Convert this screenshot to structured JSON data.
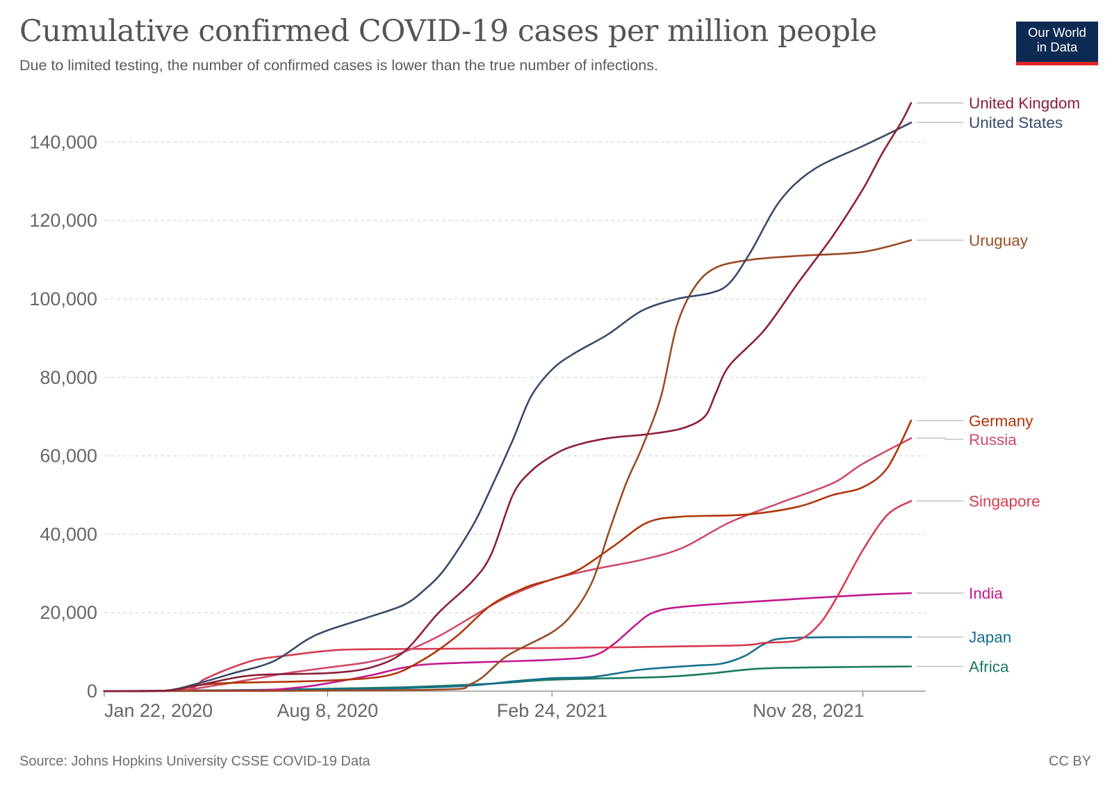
{
  "header": {
    "title": "Cumulative confirmed COVID-19 cases per million people",
    "subtitle": "Due to limited testing, the number of confirmed cases is lower than the true number of infections."
  },
  "logo": {
    "line1": "Our World",
    "line2": "in Data",
    "bg_color": "#0d2a52",
    "accent_color": "#e3262a"
  },
  "footer": {
    "source": "Source: Johns Hopkins University CSSE COVID-19 Data",
    "license": "CC BY"
  },
  "chart_data": {
    "type": "line",
    "title": "Cumulative confirmed COVID-19 cases per million people",
    "xlabel": "",
    "ylabel": "",
    "x_range": [
      "2020-01-22",
      "2022-01-23"
    ],
    "ylim": [
      0,
      150000
    ],
    "y_ticks": [
      0,
      20000,
      40000,
      60000,
      80000,
      100000,
      120000,
      140000
    ],
    "y_tick_labels": [
      "0",
      "20,000",
      "40,000",
      "60,000",
      "80,000",
      "100,000",
      "120,000",
      "140,000"
    ],
    "x_ticks": [
      "2020-01-22",
      "2020-08-08",
      "2021-02-24",
      "2021-11-28"
    ],
    "x_tick_labels": [
      "Jan 22, 2020",
      "Aug 8, 2020",
      "Feb 24, 2021",
      "Nov 28, 2021"
    ],
    "grid": "horizontal dashed",
    "legend": "right, labels at line ends",
    "series": [
      {
        "name": "United Kingdom",
        "color": "#8b1f38",
        "points": [
          [
            "2020-01-22",
            0
          ],
          [
            "2020-03-15",
            50
          ],
          [
            "2020-04-15",
            1500
          ],
          [
            "2020-06-01",
            4000
          ],
          [
            "2020-08-08",
            4600
          ],
          [
            "2020-09-15",
            6000
          ],
          [
            "2020-10-15",
            10000
          ],
          [
            "2020-11-15",
            20000
          ],
          [
            "2020-12-15",
            28000
          ],
          [
            "2021-01-01",
            35000
          ],
          [
            "2021-01-20",
            50000
          ],
          [
            "2021-02-05",
            56000
          ],
          [
            "2021-02-24",
            60000
          ],
          [
            "2021-03-15",
            62500
          ],
          [
            "2021-04-15",
            64500
          ],
          [
            "2021-05-20",
            65500
          ],
          [
            "2021-06-20",
            67000
          ],
          [
            "2021-07-10",
            70000
          ],
          [
            "2021-07-20",
            76000
          ],
          [
            "2021-08-01",
            83000
          ],
          [
            "2021-09-01",
            92000
          ],
          [
            "2021-10-01",
            104000
          ],
          [
            "2021-11-01",
            116000
          ],
          [
            "2021-11-28",
            128000
          ],
          [
            "2021-12-15",
            137000
          ],
          [
            "2022-01-01",
            145000
          ],
          [
            "2022-01-10",
            150000
          ]
        ]
      },
      {
        "name": "United States",
        "color": "#374a69",
        "points": [
          [
            "2020-01-22",
            0
          ],
          [
            "2020-03-15",
            100
          ],
          [
            "2020-04-15",
            2000
          ],
          [
            "2020-05-15",
            4500
          ],
          [
            "2020-06-20",
            7500
          ],
          [
            "2020-07-20",
            13000
          ],
          [
            "2020-08-08",
            15500
          ],
          [
            "2020-09-15",
            19000
          ],
          [
            "2020-10-15",
            22000
          ],
          [
            "2020-11-01",
            25500
          ],
          [
            "2020-11-20",
            31000
          ],
          [
            "2020-12-15",
            42000
          ],
          [
            "2021-01-01",
            52000
          ],
          [
            "2021-01-20",
            64000
          ],
          [
            "2021-02-05",
            75000
          ],
          [
            "2021-02-24",
            82000
          ],
          [
            "2021-03-15",
            86000
          ],
          [
            "2021-04-15",
            91000
          ],
          [
            "2021-05-15",
            97000
          ],
          [
            "2021-06-15",
            100000
          ],
          [
            "2021-07-15",
            101500
          ],
          [
            "2021-08-01",
            104000
          ],
          [
            "2021-08-20",
            112000
          ],
          [
            "2021-09-15",
            125000
          ],
          [
            "2021-10-15",
            133000
          ],
          [
            "2021-11-28",
            139000
          ],
          [
            "2021-12-20",
            142000
          ],
          [
            "2022-01-10",
            145000
          ]
        ]
      },
      {
        "name": "Uruguay",
        "color": "#9a4c24",
        "points": [
          [
            "2020-01-22",
            0
          ],
          [
            "2020-11-01",
            300
          ],
          [
            "2020-12-15",
            2000
          ],
          [
            "2021-01-15",
            9000
          ],
          [
            "2021-02-24",
            15000
          ],
          [
            "2021-03-15",
            20000
          ],
          [
            "2021-04-01",
            28000
          ],
          [
            "2021-04-15",
            40000
          ],
          [
            "2021-05-01",
            53000
          ],
          [
            "2021-05-15",
            62000
          ],
          [
            "2021-06-01",
            75000
          ],
          [
            "2021-06-15",
            93000
          ],
          [
            "2021-07-01",
            103000
          ],
          [
            "2021-07-20",
            108000
          ],
          [
            "2021-08-20",
            110000
          ],
          [
            "2021-10-01",
            111000
          ],
          [
            "2021-11-28",
            112000
          ],
          [
            "2022-01-10",
            115000
          ]
        ]
      },
      {
        "name": "Germany",
        "color": "#b13507",
        "points": [
          [
            "2020-01-22",
            0
          ],
          [
            "2020-03-15",
            100
          ],
          [
            "2020-04-15",
            1500
          ],
          [
            "2020-05-15",
            2100
          ],
          [
            "2020-08-08",
            2700
          ],
          [
            "2020-10-01",
            4000
          ],
          [
            "2020-11-01",
            8000
          ],
          [
            "2020-12-01",
            14000
          ],
          [
            "2021-01-01",
            22000
          ],
          [
            "2021-02-01",
            26500
          ],
          [
            "2021-02-24",
            28500
          ],
          [
            "2021-03-20",
            31000
          ],
          [
            "2021-04-20",
            37000
          ],
          [
            "2021-05-20",
            43000
          ],
          [
            "2021-06-20",
            44500
          ],
          [
            "2021-08-15",
            45000
          ],
          [
            "2021-10-01",
            47000
          ],
          [
            "2021-11-01",
            50000
          ],
          [
            "2021-11-28",
            52000
          ],
          [
            "2021-12-20",
            57000
          ],
          [
            "2022-01-10",
            69000
          ]
        ]
      },
      {
        "name": "Russia",
        "color": "#cf4b6b",
        "points": [
          [
            "2020-01-22",
            0
          ],
          [
            "2020-03-25",
            100
          ],
          [
            "2020-05-01",
            1500
          ],
          [
            "2020-06-01",
            3000
          ],
          [
            "2020-07-01",
            4500
          ],
          [
            "2020-08-08",
            6000
          ],
          [
            "2020-09-15",
            7500
          ],
          [
            "2020-10-15",
            10000
          ],
          [
            "2020-11-15",
            14000
          ],
          [
            "2020-12-15",
            19000
          ],
          [
            "2021-01-15",
            24000
          ],
          [
            "2021-02-24",
            28500
          ],
          [
            "2021-04-01",
            31000
          ],
          [
            "2021-05-15",
            33500
          ],
          [
            "2021-06-20",
            36500
          ],
          [
            "2021-08-01",
            43000
          ],
          [
            "2021-09-15",
            48000
          ],
          [
            "2021-11-01",
            53000
          ],
          [
            "2021-11-28",
            58000
          ],
          [
            "2022-01-10",
            64500
          ]
        ]
      },
      {
        "name": "Singapore",
        "color": "#d73c50",
        "points": [
          [
            "2020-01-22",
            0
          ],
          [
            "2020-04-01",
            200
          ],
          [
            "2020-04-20",
            3000
          ],
          [
            "2020-05-10",
            5500
          ],
          [
            "2020-06-05",
            8000
          ],
          [
            "2020-07-01",
            9000
          ],
          [
            "2020-08-08",
            10300
          ],
          [
            "2020-09-15",
            10700
          ],
          [
            "2021-02-24",
            11000
          ],
          [
            "2021-08-01",
            11600
          ],
          [
            "2021-09-01",
            12300
          ],
          [
            "2021-10-01",
            13000
          ],
          [
            "2021-10-20",
            17000
          ],
          [
            "2021-11-05",
            24000
          ],
          [
            "2021-11-28",
            36000
          ],
          [
            "2021-12-20",
            45000
          ],
          [
            "2022-01-10",
            48500
          ]
        ]
      },
      {
        "name": "India",
        "color": "#c2188f",
        "points": [
          [
            "2020-01-22",
            0
          ],
          [
            "2020-06-01",
            200
          ],
          [
            "2020-07-15",
            1000
          ],
          [
            "2020-08-08",
            2000
          ],
          [
            "2020-09-15",
            4000
          ],
          [
            "2020-10-15",
            6000
          ],
          [
            "2020-11-15",
            7000
          ],
          [
            "2021-02-24",
            8000
          ],
          [
            "2021-04-01",
            9000
          ],
          [
            "2021-04-20",
            12000
          ],
          [
            "2021-05-10",
            17000
          ],
          [
            "2021-05-25",
            20000
          ],
          [
            "2021-06-20",
            21500
          ],
          [
            "2021-09-01",
            23000
          ],
          [
            "2021-11-28",
            24500
          ],
          [
            "2022-01-10",
            25000
          ]
        ]
      },
      {
        "name": "Japan",
        "color": "#16708f",
        "points": [
          [
            "2020-01-22",
            0
          ],
          [
            "2020-08-08",
            400
          ],
          [
            "2020-12-01",
            1200
          ],
          [
            "2021-01-20",
            2500
          ],
          [
            "2021-02-24",
            3300
          ],
          [
            "2021-04-01",
            3600
          ],
          [
            "2021-05-15",
            5500
          ],
          [
            "2021-07-01",
            6500
          ],
          [
            "2021-07-25",
            7000
          ],
          [
            "2021-08-15",
            9000
          ],
          [
            "2021-09-01",
            12000
          ],
          [
            "2021-09-20",
            13500
          ],
          [
            "2021-11-28",
            13800
          ],
          [
            "2022-01-10",
            13800
          ]
        ]
      },
      {
        "name": "Africa",
        "color": "#1b7a5f",
        "points": [
          [
            "2020-01-22",
            0
          ],
          [
            "2020-06-01",
            300
          ],
          [
            "2020-08-08",
            600
          ],
          [
            "2020-10-15",
            1000
          ],
          [
            "2021-01-01",
            1900
          ],
          [
            "2021-02-24",
            2900
          ],
          [
            "2021-06-01",
            3600
          ],
          [
            "2021-07-15",
            4500
          ],
          [
            "2021-09-01",
            5800
          ],
          [
            "2021-11-28",
            6200
          ],
          [
            "2022-01-10",
            6300
          ]
        ]
      }
    ],
    "end_labels": [
      {
        "name": "United Kingdom"
      },
      {
        "name": "United States"
      },
      {
        "name": "Uruguay"
      },
      {
        "name": "Germany"
      },
      {
        "name": "Russia"
      },
      {
        "name": "Singapore"
      },
      {
        "name": "India"
      },
      {
        "name": "Japan"
      },
      {
        "name": "Africa"
      }
    ]
  }
}
